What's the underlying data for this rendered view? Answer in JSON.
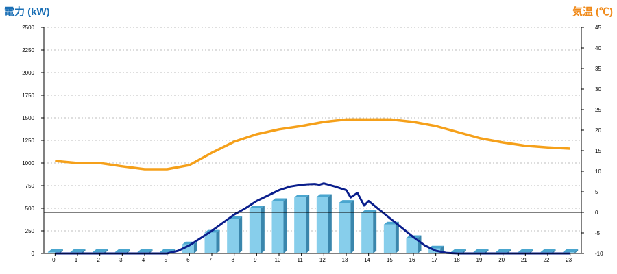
{
  "chart_data": {
    "type": "bar",
    "left_axis_title": "電力 (kW)",
    "right_axis_title": "気温 (℃)",
    "categories": [
      "0",
      "1",
      "2",
      "3",
      "4",
      "5",
      "6",
      "7",
      "8",
      "9",
      "10",
      "11",
      "12",
      "13",
      "14",
      "15",
      "16",
      "17",
      "18",
      "19",
      "20",
      "21",
      "22",
      "23"
    ],
    "ylim_left": [
      0,
      2500
    ],
    "yticks_left": [
      0,
      250,
      500,
      750,
      1000,
      1250,
      1500,
      1750,
      2000,
      2250,
      2500
    ],
    "ylim_right": [
      -10,
      45
    ],
    "yticks_right": [
      -10,
      -5,
      0,
      5,
      10,
      15,
      20,
      25,
      30,
      35,
      40,
      45
    ],
    "grid": true,
    "series": [
      {
        "chart": "bar",
        "axis": "left",
        "color": "#87ceeb",
        "values": [
          15,
          15,
          15,
          15,
          15,
          15,
          100,
          230,
          380,
          500,
          580,
          620,
          625,
          560,
          450,
          320,
          170,
          55,
          15,
          15,
          15,
          15,
          15,
          15
        ]
      },
      {
        "chart": "line",
        "axis": "right",
        "color": "#f5a01a",
        "values": [
          12.5,
          12.0,
          12.0,
          11.2,
          10.5,
          10.5,
          11.5,
          14.5,
          17.2,
          19.0,
          20.2,
          21.0,
          22.0,
          22.6,
          22.6,
          22.6,
          22.0,
          21.0,
          19.5,
          18.0,
          17.0,
          16.2,
          15.8,
          15.5
        ]
      },
      {
        "chart": "line",
        "axis": "left",
        "color": "#0a1e8c",
        "x": [
          0,
          5,
          5.5,
          6,
          6.5,
          7,
          7.5,
          8,
          8.5,
          9,
          9.5,
          10,
          10.5,
          11,
          11.3,
          11.6,
          11.8,
          12,
          12.5,
          13,
          13.2,
          13.5,
          13.8,
          14,
          14.3,
          15,
          15.5,
          16,
          16.5,
          17,
          17.5,
          18,
          23
        ],
        "values": [
          0,
          0,
          30,
          90,
          170,
          250,
          340,
          430,
          500,
          580,
          640,
          700,
          740,
          760,
          765,
          768,
          760,
          775,
          740,
          700,
          620,
          670,
          530,
          580,
          520,
          380,
          280,
          180,
          90,
          30,
          5,
          0,
          0
        ]
      }
    ]
  }
}
